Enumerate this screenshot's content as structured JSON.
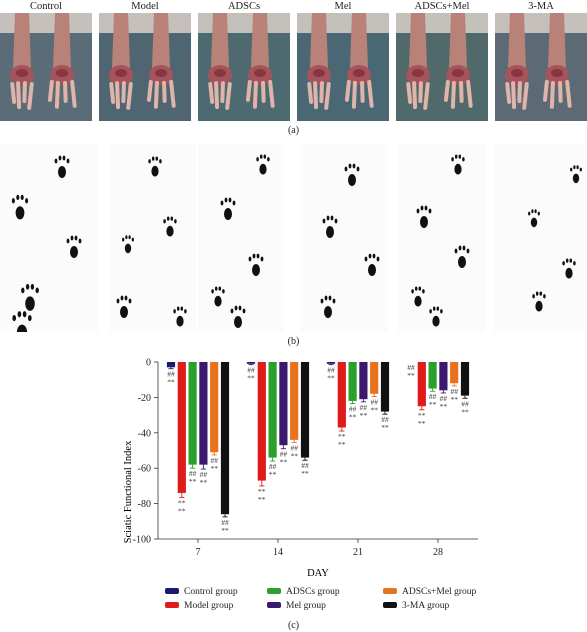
{
  "panel_a": {
    "labels": [
      "Control",
      "Model",
      "ADSCs",
      "Mel",
      "ADSCs+Mel",
      "3-MA"
    ],
    "caption": "(a)"
  },
  "panel_b": {
    "caption": "(b)"
  },
  "panel_c": {
    "caption": "(c)",
    "legend": [
      {
        "label": "Control group",
        "color": "#1a1a6e"
      },
      {
        "label": "ADSCs group",
        "color": "#2ca02c"
      },
      {
        "label": "ADSCs+Mel group",
        "color": "#e8731f"
      },
      {
        "label": "Model group",
        "color": "#e01b1b"
      },
      {
        "label": "Mel group",
        "color": "#3b1a6e"
      },
      {
        "label": "3-MA group",
        "color": "#111111"
      }
    ]
  },
  "chart_data": {
    "type": "bar",
    "categories": [
      "7",
      "14",
      "21",
      "28"
    ],
    "xlabel": "DAY",
    "ylabel": "Sciatic Functional Index",
    "ylim": [
      -100,
      0
    ],
    "yticks": [
      "0",
      "-20",
      "-40",
      "-60",
      "-80",
      "-100"
    ],
    "grid": false,
    "legend_position": "bottom",
    "series": [
      {
        "name": "Control group",
        "color": "#1a1a6e",
        "values": [
          -3,
          -1,
          -1,
          0
        ],
        "err": [
          0.8,
          0.5,
          0.5,
          0
        ],
        "annot": [
          "##",
          "##",
          "##",
          "##"
        ]
      },
      {
        "name": "Model group",
        "color": "#e01b1b",
        "values": [
          -74,
          -67,
          -37,
          -25
        ],
        "err": [
          2.5,
          3,
          2,
          2
        ],
        "annot": [
          "**",
          "**",
          "**",
          "**"
        ]
      },
      {
        "name": "ADSCs group",
        "color": "#2ca02c",
        "values": [
          -58,
          -54,
          -22,
          -15
        ],
        "err": [
          2,
          2,
          1.5,
          1.5
        ],
        "annot": [
          "##",
          "##",
          "##",
          "##"
        ]
      },
      {
        "name": "Mel group",
        "color": "#3b1a6e",
        "values": [
          -58,
          -47,
          -21,
          -16
        ],
        "err": [
          2.5,
          2,
          1.5,
          1.5
        ],
        "annot": [
          "##",
          "##",
          "##",
          "##"
        ]
      },
      {
        "name": "ADSCs+Mel group",
        "color": "#e8731f",
        "values": [
          -51,
          -44,
          -18,
          -12
        ],
        "err": [
          1.5,
          1.5,
          1.5,
          1.5
        ],
        "annot": [
          "##",
          "##",
          "##",
          "##"
        ]
      },
      {
        "name": "3-MA group",
        "color": "#111111",
        "values": [
          -86,
          -54,
          -28,
          -19
        ],
        "err": [
          1.5,
          1.5,
          1.5,
          1.5
        ],
        "annot": [
          "##",
          "##",
          "##",
          "##"
        ]
      }
    ],
    "stars": "**"
  }
}
